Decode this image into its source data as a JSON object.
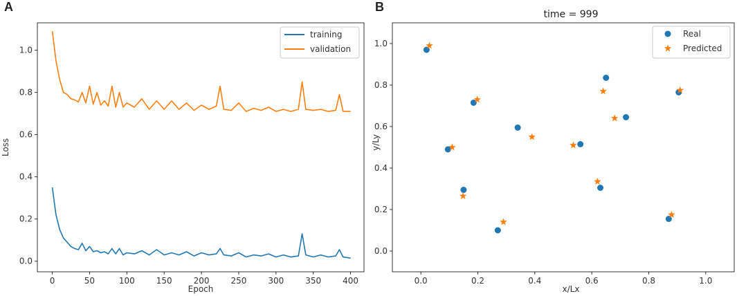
{
  "chart_data": [
    {
      "panel": "A",
      "type": "line",
      "title": "",
      "xlabel": "Epoch",
      "ylabel": "Loss",
      "xlim": [
        -20,
        418
      ],
      "ylim": [
        -0.05,
        1.13
      ],
      "xticks": [
        0,
        50,
        100,
        150,
        200,
        250,
        300,
        350,
        400
      ],
      "xtick_labels": [
        "0",
        "50",
        "100",
        "150",
        "200",
        "250",
        "300",
        "350",
        "400"
      ],
      "yticks": [
        0.0,
        0.2,
        0.4,
        0.6,
        0.8,
        1.0
      ],
      "ytick_labels": [
        "0.0",
        "0.2",
        "0.4",
        "0.6",
        "0.8",
        "1.0"
      ],
      "legend": "top-right",
      "series": [
        {
          "name": "training",
          "color": "#1f77b4",
          "x": [
            0,
            5,
            10,
            15,
            20,
            25,
            30,
            35,
            40,
            45,
            50,
            55,
            60,
            65,
            70,
            75,
            80,
            85,
            90,
            95,
            100,
            110,
            120,
            130,
            140,
            150,
            160,
            170,
            180,
            190,
            200,
            210,
            220,
            225,
            230,
            240,
            250,
            260,
            270,
            280,
            290,
            300,
            310,
            320,
            330,
            335,
            340,
            350,
            360,
            370,
            380,
            385,
            390,
            400
          ],
          "values": [
            0.35,
            0.22,
            0.15,
            0.11,
            0.09,
            0.07,
            0.06,
            0.055,
            0.085,
            0.05,
            0.07,
            0.045,
            0.05,
            0.04,
            0.045,
            0.035,
            0.06,
            0.035,
            0.06,
            0.03,
            0.04,
            0.035,
            0.05,
            0.03,
            0.055,
            0.03,
            0.04,
            0.03,
            0.045,
            0.025,
            0.04,
            0.03,
            0.035,
            0.06,
            0.03,
            0.025,
            0.04,
            0.02,
            0.03,
            0.025,
            0.035,
            0.02,
            0.03,
            0.02,
            0.025,
            0.13,
            0.03,
            0.02,
            0.03,
            0.02,
            0.025,
            0.055,
            0.02,
            0.015
          ]
        },
        {
          "name": "validation",
          "color": "#ff7f0e",
          "x": [
            0,
            5,
            10,
            15,
            20,
            25,
            30,
            35,
            40,
            45,
            50,
            55,
            60,
            65,
            70,
            75,
            80,
            85,
            90,
            95,
            100,
            110,
            120,
            130,
            140,
            150,
            160,
            170,
            180,
            190,
            200,
            210,
            220,
            225,
            230,
            240,
            250,
            260,
            270,
            280,
            290,
            300,
            310,
            320,
            330,
            335,
            340,
            350,
            360,
            370,
            380,
            385,
            390,
            400
          ],
          "values": [
            1.09,
            0.95,
            0.86,
            0.8,
            0.79,
            0.77,
            0.765,
            0.755,
            0.8,
            0.75,
            0.83,
            0.745,
            0.8,
            0.74,
            0.76,
            0.735,
            0.83,
            0.73,
            0.8,
            0.73,
            0.75,
            0.73,
            0.77,
            0.72,
            0.76,
            0.72,
            0.76,
            0.72,
            0.75,
            0.715,
            0.74,
            0.72,
            0.735,
            0.83,
            0.72,
            0.715,
            0.75,
            0.71,
            0.725,
            0.715,
            0.73,
            0.71,
            0.72,
            0.71,
            0.72,
            0.85,
            0.72,
            0.715,
            0.72,
            0.71,
            0.715,
            0.79,
            0.71,
            0.71
          ]
        }
      ]
    },
    {
      "panel": "B",
      "type": "scatter",
      "title": "time = 999",
      "xlabel": "x/Lx",
      "ylabel": "y/Ly",
      "xlim": [
        -0.1,
        1.1
      ],
      "ylim": [
        -0.1,
        1.1
      ],
      "xticks": [
        0.0,
        0.2,
        0.4,
        0.6,
        0.8,
        1.0
      ],
      "xtick_labels": [
        "0.0",
        "0.2",
        "0.4",
        "0.6",
        "0.8",
        "1.0"
      ],
      "yticks": [
        0.0,
        0.2,
        0.4,
        0.6,
        0.8,
        1.0
      ],
      "ytick_labels": [
        "0.0",
        "0.2",
        "0.4",
        "0.6",
        "0.8",
        "1.0"
      ],
      "legend": "top-right",
      "series": [
        {
          "name": "Real",
          "marker": "circle",
          "color": "#1f77b4",
          "x": [
            0.02,
            0.095,
            0.15,
            0.185,
            0.27,
            0.34,
            0.56,
            0.63,
            0.65,
            0.72,
            0.87,
            0.905
          ],
          "y": [
            0.97,
            0.49,
            0.295,
            0.715,
            0.1,
            0.595,
            0.515,
            0.305,
            0.835,
            0.645,
            0.155,
            0.765
          ]
        },
        {
          "name": "Predicted",
          "marker": "star",
          "color": "#ff7f0e",
          "x": [
            0.03,
            0.11,
            0.148,
            0.198,
            0.29,
            0.39,
            0.535,
            0.62,
            0.64,
            0.68,
            0.88,
            0.91
          ],
          "y": [
            0.99,
            0.5,
            0.265,
            0.73,
            0.14,
            0.55,
            0.51,
            0.335,
            0.77,
            0.64,
            0.175,
            0.775
          ]
        }
      ]
    }
  ]
}
